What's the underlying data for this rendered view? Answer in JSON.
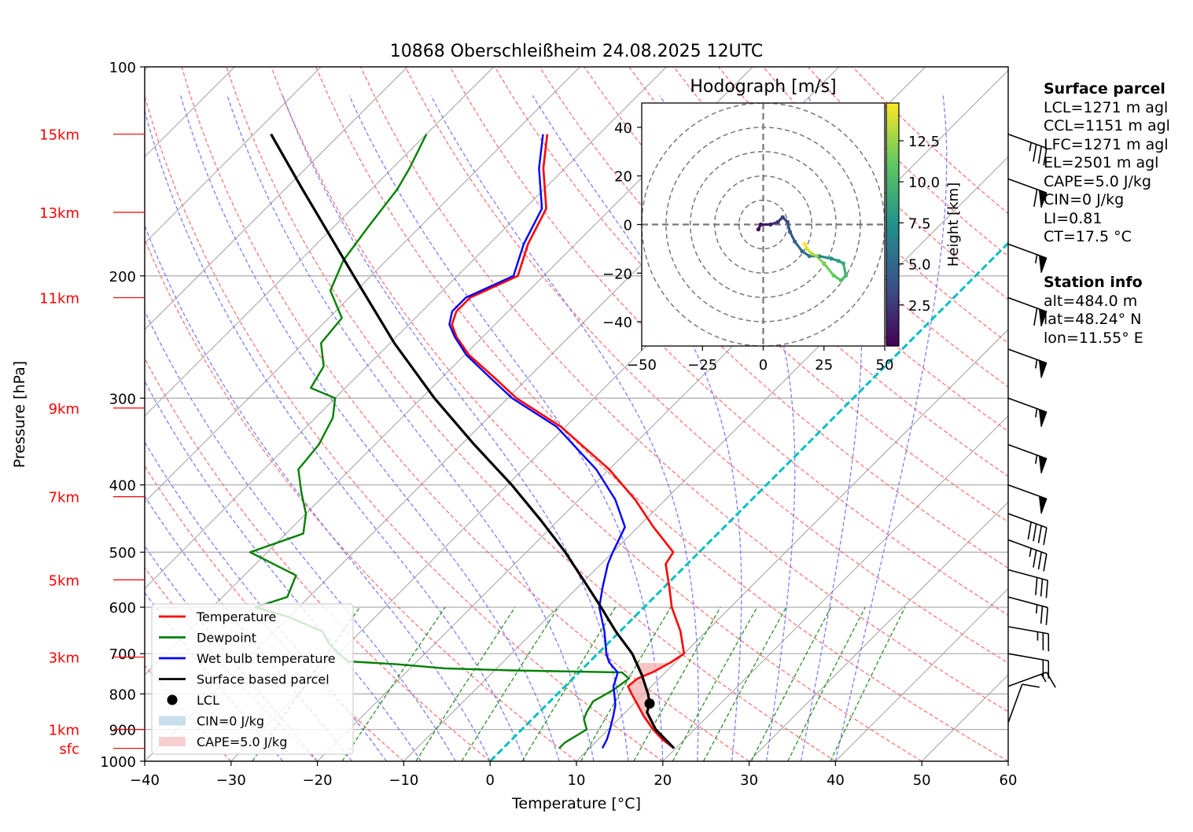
{
  "title": "10868 Oberschleißheim 24.08.2025 12UTC",
  "colors": {
    "temperature": "#ff0000",
    "dewpoint": "#008000",
    "wetbulb": "#0000ff",
    "parcel": "#000000",
    "isotherm_0": "#00bfbf",
    "dry_adiabat": "#ff6666",
    "moist_adiabat": "#6666ff",
    "mixing_ratio": "#008000",
    "height_label": "#ff0000",
    "cin_fill": "#a8c8e0",
    "cape_fill": "#f4b0b0"
  },
  "chart_data": {
    "type": "line",
    "subtype": "skew-T log-p",
    "title": "10868 Oberschleißheim 24.08.2025 12UTC",
    "xlabel": "Temperature [°C]",
    "ylabel": "Pressure [hPa]",
    "xlim": [
      -40,
      60
    ],
    "ylim": [
      1000,
      100
    ],
    "y_scale": "log",
    "x_ticks": [
      "−40",
      "−30",
      "−20",
      "−10",
      "0",
      "10",
      "20",
      "30",
      "40",
      "50",
      "60"
    ],
    "y_ticks": [
      "100",
      "200",
      "300",
      "400",
      "500",
      "600",
      "700",
      "800",
      "900",
      "1000"
    ],
    "height_labels": [
      {
        "text": "15km",
        "p": 125
      },
      {
        "text": "13km",
        "p": 162
      },
      {
        "text": "11km",
        "p": 215
      },
      {
        "text": "9km",
        "p": 310
      },
      {
        "text": "7km",
        "p": 416
      },
      {
        "text": "5km",
        "p": 548
      },
      {
        "text": "3km",
        "p": 708
      },
      {
        "text": "1km",
        "p": 900
      },
      {
        "text": "sfc",
        "p": 958
      }
    ],
    "legend": {
      "placement": "lower-left",
      "entries": [
        {
          "label": "Temperature",
          "style": "line",
          "color": "#ff0000"
        },
        {
          "label": "Dewpoint",
          "style": "line",
          "color": "#008000"
        },
        {
          "label": "Wet bulb temperature",
          "style": "line",
          "color": "#0000ff"
        },
        {
          "label": "Surface based parcel",
          "style": "line",
          "color": "#000000"
        },
        {
          "label": "LCL",
          "style": "dot",
          "color": "#000000"
        },
        {
          "label": "CIN=0 J/kg",
          "style": "patch",
          "color": "#a8c8e0"
        },
        {
          "label": "CAPE=5.0 J/kg",
          "style": "patch",
          "color": "#f4b0b0"
        }
      ]
    },
    "series": [
      {
        "name": "Temperature",
        "p": [
          958,
          930,
          900,
          860,
          830,
          800,
          780,
          760,
          745,
          720,
          700,
          650,
          600,
          560,
          520,
          500,
          460,
          420,
          380,
          330,
          300,
          280,
          260,
          245,
          235,
          225,
          215,
          200,
          180,
          160,
          140,
          125
        ],
        "t": [
          19.8,
          17.4,
          15.2,
          12.5,
          10.6,
          8.6,
          7.3,
          7.5,
          8.5,
          9.5,
          10.0,
          7.0,
          3.2,
          0.5,
          -2.5,
          -3.0,
          -8.2,
          -13.5,
          -20.0,
          -30.5,
          -39.0,
          -44.0,
          -49.5,
          -53.0,
          -55.0,
          -56.0,
          -56.0,
          -53.0,
          -55.5,
          -57.5,
          -62.5,
          -66.0
        ]
      },
      {
        "name": "Dewpoint",
        "p": [
          958,
          940,
          900,
          870,
          850,
          820,
          790,
          760,
          745,
          740,
          735,
          725,
          718,
          700,
          680,
          650,
          620,
          600,
          580,
          540,
          500,
          470,
          440,
          410,
          380,
          350,
          320,
          300,
          290,
          270,
          250,
          230,
          210,
          190,
          170,
          150,
          140,
          125
        ],
        "t": [
          6.5,
          6.5,
          7.5,
          6.0,
          5.5,
          5.0,
          6.0,
          6.5,
          5.0,
          -8.0,
          -16.0,
          -22.0,
          -28.0,
          -30.0,
          -32.0,
          -34.5,
          -40.0,
          -45.0,
          -42.5,
          -44.0,
          -52.0,
          -48.0,
          -50.0,
          -53.0,
          -56.0,
          -56.5,
          -58.0,
          -60.0,
          -64.0,
          -65.0,
          -68.0,
          -68.5,
          -73.0,
          -75.0,
          -76.0,
          -77.0,
          -78.0,
          -80.0
        ]
      },
      {
        "name": "Wet bulb temperature",
        "p": [
          958,
          930,
          900,
          860,
          830,
          800,
          780,
          760,
          745,
          720,
          700,
          650,
          600,
          560,
          520,
          500,
          460,
          420,
          380,
          330,
          300,
          280,
          260,
          245,
          235,
          225,
          215,
          200,
          180,
          160,
          140,
          125
        ],
        "t": [
          11.5,
          11.0,
          10.2,
          9.0,
          8.0,
          6.6,
          5.6,
          5.0,
          4.5,
          2.3,
          1.0,
          -1.8,
          -5.2,
          -7.2,
          -9.2,
          -10.0,
          -11.5,
          -15.8,
          -21.5,
          -31.0,
          -39.5,
          -44.5,
          -49.8,
          -53.2,
          -55.3,
          -56.5,
          -56.5,
          -53.5,
          -56.0,
          -58.0,
          -63.0,
          -66.5
        ]
      },
      {
        "name": "Surface based parcel",
        "p": [
          958,
          900,
          850,
          826,
          800,
          750,
          700,
          650,
          600,
          550,
          500,
          450,
          400,
          350,
          300,
          250,
          200,
          150,
          125
        ],
        "t": [
          19.8,
          15.5,
          12.5,
          11.8,
          10.5,
          7.5,
          4.0,
          -0.5,
          -5.0,
          -10.0,
          -15.5,
          -22.0,
          -29.5,
          -38.5,
          -48.5,
          -59.5,
          -72.0,
          -88.0,
          -98.0
        ]
      }
    ],
    "lcl": {
      "p": 826,
      "t": 11.8
    },
    "cin_j_kg": 0,
    "cape_j_kg": 5.0,
    "hodograph": {
      "title": "Hodograph [m/s]",
      "xlim": [
        -50,
        50
      ],
      "ylim": [
        -50,
        50
      ],
      "x_ticks": [
        "−50",
        "−25",
        "0",
        "25",
        "50"
      ],
      "y_ticks": [
        "40",
        "20",
        "0",
        "−20",
        "−40"
      ],
      "rings": [
        10,
        20,
        30,
        40,
        50
      ],
      "colorbar_label": "Height [km]",
      "colorbar_ticks": [
        "2.5",
        "5.0",
        "7.5",
        "10.0",
        "12.5"
      ],
      "z_range": [
        0,
        14.8
      ],
      "points": [
        {
          "u": -2,
          "v": -2,
          "z": 0.3
        },
        {
          "u": -1,
          "v": 0,
          "z": 0.8
        },
        {
          "u": 3,
          "v": 0,
          "z": 1.5
        },
        {
          "u": 6,
          "v": 1,
          "z": 2.2
        },
        {
          "u": 8,
          "v": 3,
          "z": 2.8
        },
        {
          "u": 10,
          "v": 1,
          "z": 3.3
        },
        {
          "u": 11,
          "v": -3,
          "z": 4.0
        },
        {
          "u": 13,
          "v": -7,
          "z": 4.7
        },
        {
          "u": 16,
          "v": -11,
          "z": 5.4
        },
        {
          "u": 19,
          "v": -13,
          "z": 6.0
        },
        {
          "u": 23,
          "v": -13,
          "z": 6.8
        },
        {
          "u": 28,
          "v": -14,
          "z": 7.6
        },
        {
          "u": 31,
          "v": -15,
          "z": 8.3
        },
        {
          "u": 33,
          "v": -16,
          "z": 9.0
        },
        {
          "u": 34,
          "v": -21,
          "z": 9.8
        },
        {
          "u": 32,
          "v": -23,
          "z": 10.5
        },
        {
          "u": 29,
          "v": -21,
          "z": 11.2
        },
        {
          "u": 25,
          "v": -16,
          "z": 11.8
        },
        {
          "u": 22,
          "v": -13,
          "z": 12.5
        },
        {
          "u": 20,
          "v": -12,
          "z": 13.2
        },
        {
          "u": 18,
          "v": -10,
          "z": 14.0
        },
        {
          "u": 17,
          "v": -8,
          "z": 14.8
        }
      ]
    },
    "wind_barbs": [
      {
        "p": 125,
        "speed_kt": 35,
        "dir_deg": 290
      },
      {
        "p": 145,
        "speed_kt": 60,
        "dir_deg": 290
      },
      {
        "p": 180,
        "speed_kt": 55,
        "dir_deg": 290
      },
      {
        "p": 215,
        "speed_kt": 60,
        "dir_deg": 290
      },
      {
        "p": 255,
        "speed_kt": 55,
        "dir_deg": 290
      },
      {
        "p": 300,
        "speed_kt": 55,
        "dir_deg": 290
      },
      {
        "p": 350,
        "speed_kt": 55,
        "dir_deg": 290
      },
      {
        "p": 400,
        "speed_kt": 50,
        "dir_deg": 290
      },
      {
        "p": 440,
        "speed_kt": 40,
        "dir_deg": 290
      },
      {
        "p": 480,
        "speed_kt": 35,
        "dir_deg": 290
      },
      {
        "p": 530,
        "speed_kt": 30,
        "dir_deg": 285
      },
      {
        "p": 580,
        "speed_kt": 25,
        "dir_deg": 285
      },
      {
        "p": 640,
        "speed_kt": 25,
        "dir_deg": 280
      },
      {
        "p": 700,
        "speed_kt": 20,
        "dir_deg": 280
      },
      {
        "p": 780,
        "speed_kt": 15,
        "dir_deg": 250
      },
      {
        "p": 880,
        "speed_kt": 10,
        "dir_deg": 200
      }
    ]
  },
  "info": {
    "surface_header": "Surface parcel",
    "surface_lines": [
      "LCL=1271 m agl",
      "CCL=1151 m agl",
      "LFC=1271 m agl",
      "EL=2501 m agl",
      "CAPE=5.0 J/kg",
      "CIN=0 J/kg",
      "LI=0.81",
      "CT=17.5 °C"
    ],
    "station_header": "Station info",
    "station_lines": [
      "alt=484.0 m",
      "lat=48.24° N",
      "lon=11.55° E"
    ]
  }
}
